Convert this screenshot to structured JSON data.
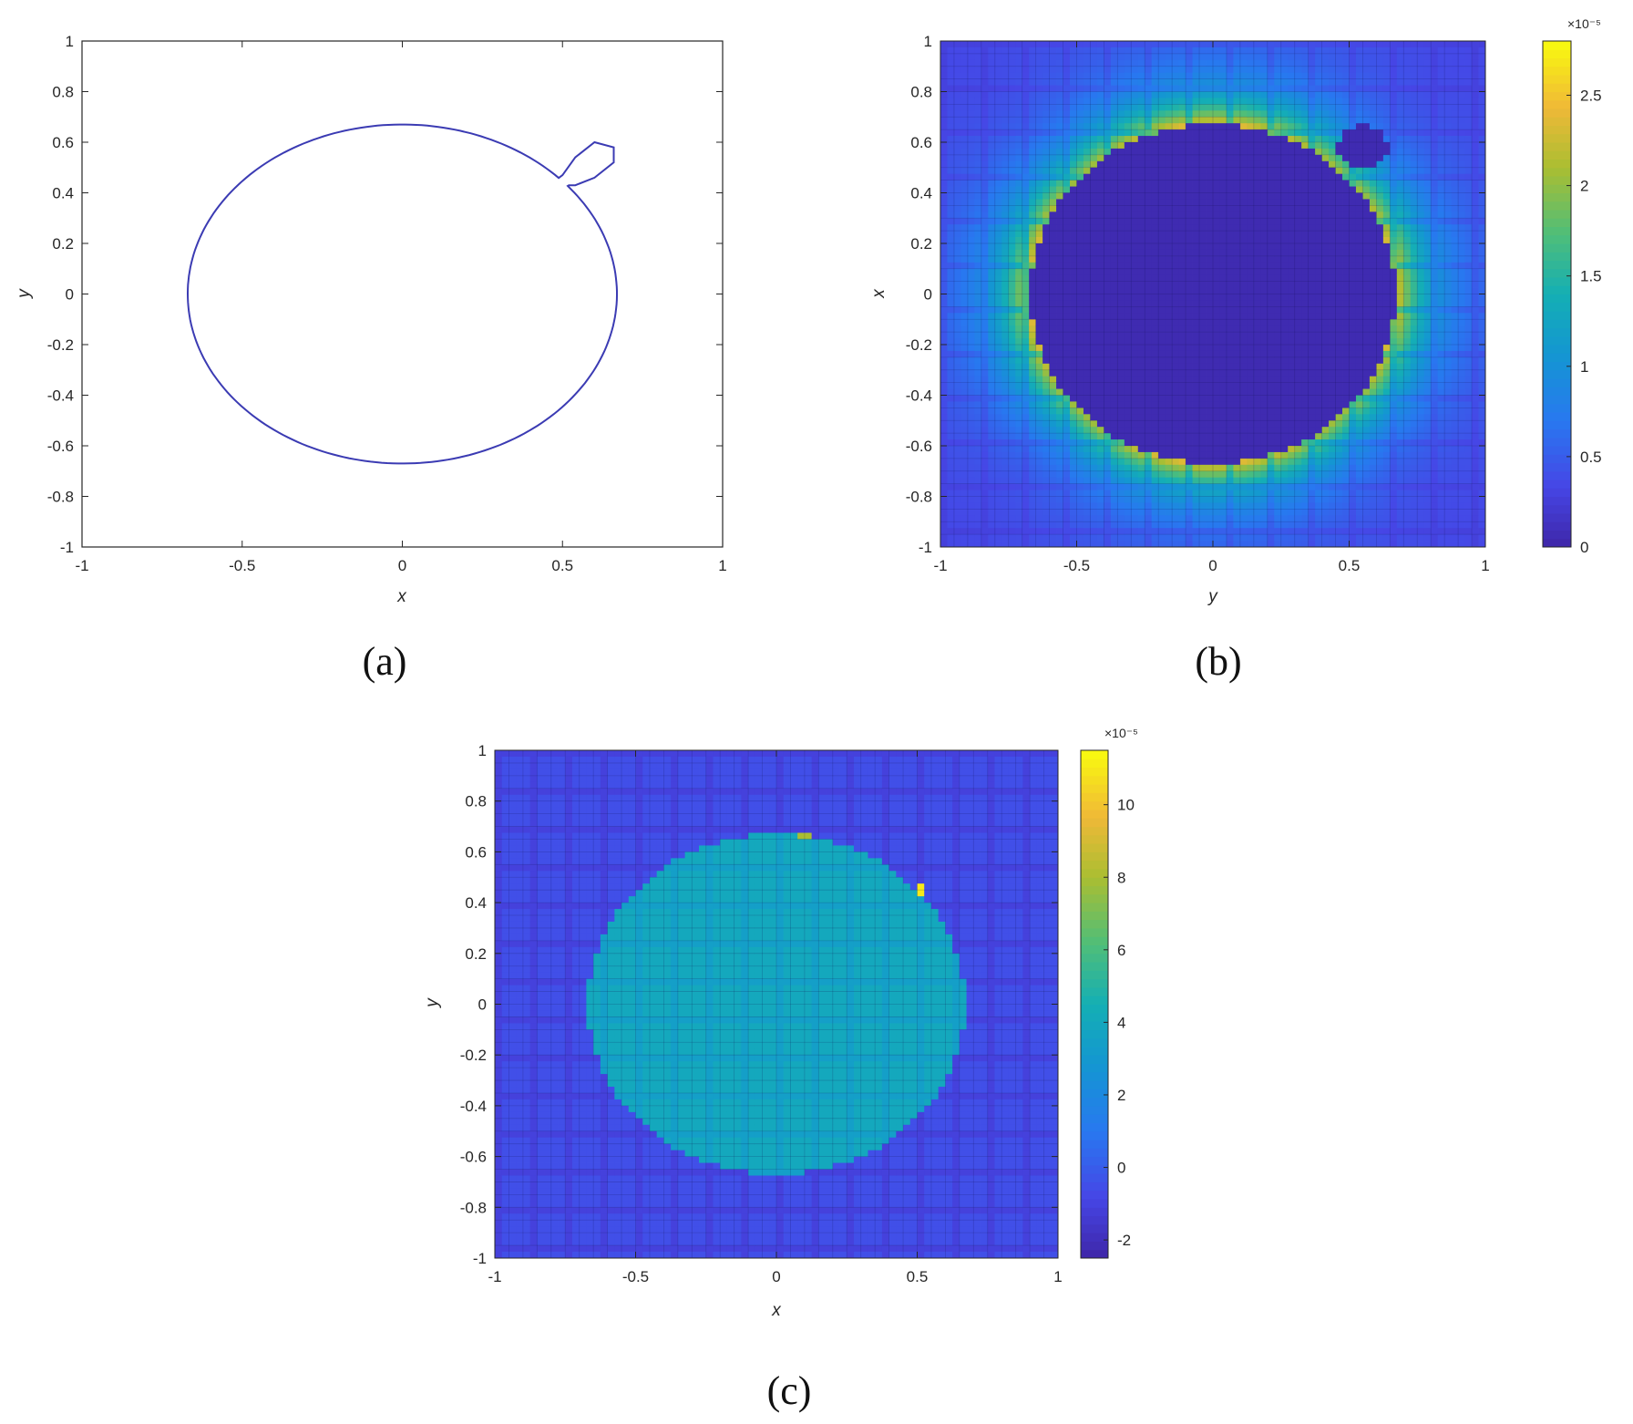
{
  "chart_data": [
    {
      "id": "a",
      "type": "line",
      "caption": "(a)",
      "xlabel": "x",
      "ylabel": "y",
      "xlim": [
        -1,
        1
      ],
      "ylim": [
        -1,
        1
      ],
      "x_ticks": [
        "-1",
        "-0.5",
        "0",
        "0.5",
        "1"
      ],
      "y_ticks": [
        "1",
        "0.8",
        "0.6",
        "0.4",
        "0.2",
        "0",
        "-0.2",
        "-0.4",
        "-0.6",
        "-0.8",
        "-1"
      ],
      "grid": false,
      "line_color": "#3b3bb3",
      "curve": {
        "circle_center": [
          0.0,
          0.0
        ],
        "circle_radius": 0.67,
        "lobe_points": [
          [
            0.5,
            0.47
          ],
          [
            0.54,
            0.54
          ],
          [
            0.6,
            0.6
          ],
          [
            0.66,
            0.58
          ],
          [
            0.66,
            0.52
          ],
          [
            0.6,
            0.46
          ],
          [
            0.54,
            0.43
          ],
          [
            0.52,
            0.43
          ]
        ]
      }
    },
    {
      "id": "b",
      "type": "heatmap",
      "caption": "(b)",
      "xlabel": "y",
      "ylabel": "x",
      "xlim": [
        -1,
        1
      ],
      "ylim": [
        -1,
        1
      ],
      "x_ticks": [
        "-1",
        "-0.5",
        "0",
        "0.5",
        "1"
      ],
      "y_ticks": [
        "1",
        "0.8",
        "0.6",
        "0.4",
        "0.2",
        "0",
        "-0.2",
        "-0.4",
        "-0.6",
        "-0.8",
        "-1"
      ],
      "colormap": "parula",
      "colorbar": {
        "min": 0,
        "max": 2.8,
        "ticks": [
          "0",
          "0.5",
          "1",
          "1.5",
          "2",
          "2.5"
        ],
        "tick_values": [
          0,
          0.5,
          1,
          1.5,
          2,
          2.5
        ],
        "exponent": "×10⁻⁵"
      },
      "field": {
        "inner_radius": 0.67,
        "inner_value": 0.05,
        "peak_value": 2.4,
        "background_value": 0.4,
        "lobe_center": [
          0.55,
          0.58
        ]
      }
    },
    {
      "id": "c",
      "type": "heatmap",
      "caption": "(c)",
      "xlabel": "x",
      "ylabel": "y",
      "xlim": [
        -1,
        1
      ],
      "ylim": [
        -1,
        1
      ],
      "x_ticks": [
        "-1",
        "-0.5",
        "0",
        "0.5",
        "1"
      ],
      "y_ticks": [
        "1",
        "0.8",
        "0.6",
        "0.4",
        "0.2",
        "0",
        "-0.2",
        "-0.4",
        "-0.6",
        "-0.8",
        "-1"
      ],
      "colormap": "parula",
      "colorbar": {
        "min": -2.5,
        "max": 11.5,
        "ticks": [
          "-2",
          "0",
          "2",
          "4",
          "6",
          "8",
          "10"
        ],
        "tick_values": [
          -2,
          0,
          2,
          4,
          6,
          8,
          10
        ],
        "exponent": "×10⁻⁵"
      },
      "field": {
        "inner_radius": 0.67,
        "inner_value": 4.0,
        "background_value": -0.5,
        "hot_spots": [
          [
            0.1,
            0.66,
            8.0
          ],
          [
            0.51,
            0.45,
            11.0
          ]
        ]
      }
    }
  ]
}
